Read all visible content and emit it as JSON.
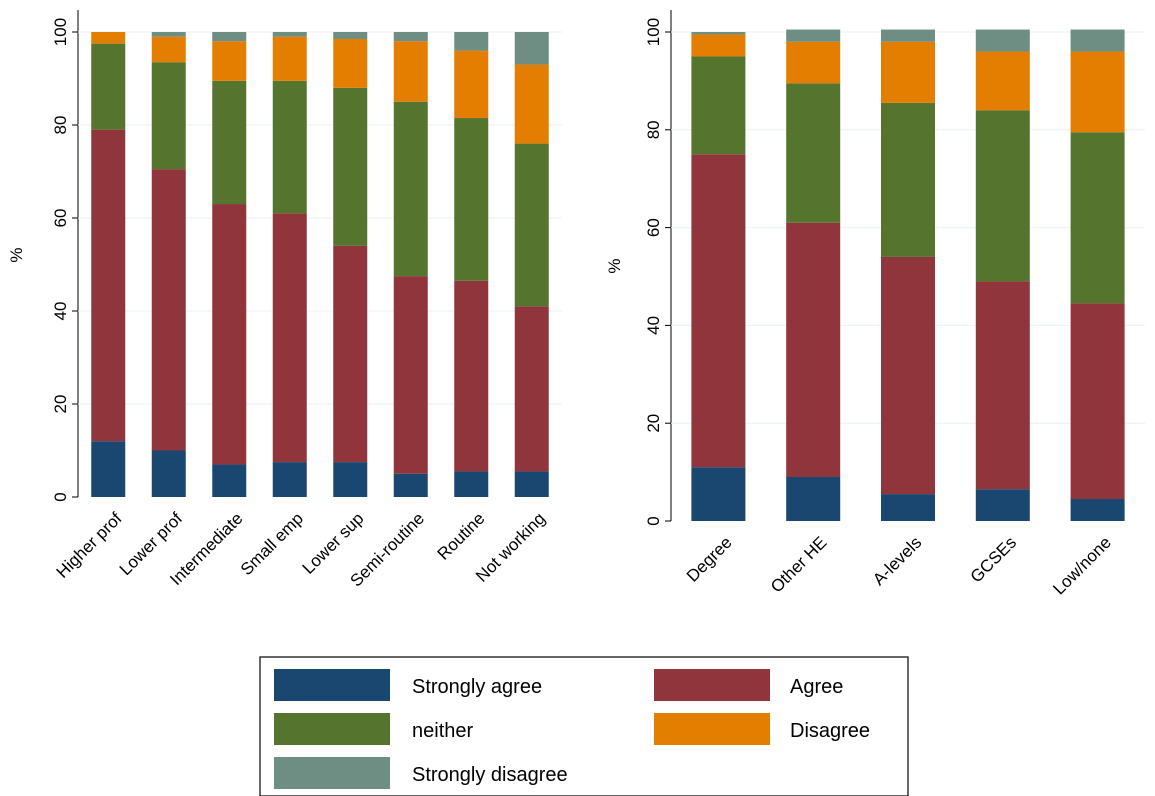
{
  "legend": {
    "position": "bottom",
    "items": [
      {
        "name": "Strongly agree",
        "color": "#1a476f"
      },
      {
        "name": "Agree",
        "color": "#90353b"
      },
      {
        "name": "neither",
        "color": "#55752f"
      },
      {
        "name": "Disagree",
        "color": "#e37e00"
      },
      {
        "name": "Strongly disagree",
        "color": "#6e8e84"
      }
    ]
  },
  "chart_data": [
    {
      "type": "bar",
      "stacked": true,
      "title": "",
      "xlabel": "",
      "ylabel": "%",
      "ylim": [
        0,
        100
      ],
      "yticks": [
        0,
        20,
        40,
        60,
        80,
        100
      ],
      "grid": true,
      "categories": [
        "Higher prof",
        "Lower prof",
        "Intermediate",
        "Small emp",
        "Lower sup",
        "Semi-routine",
        "Routine",
        "Not working"
      ],
      "series": [
        {
          "name": "Strongly agree",
          "color": "#1a476f",
          "values": [
            12,
            10,
            7,
            7.5,
            7.5,
            5,
            5.5,
            5.5
          ]
        },
        {
          "name": "Agree",
          "color": "#90353b",
          "values": [
            67,
            60.5,
            56,
            53.5,
            46.5,
            42.5,
            41,
            35.5
          ]
        },
        {
          "name": "neither",
          "color": "#55752f",
          "values": [
            18.5,
            23,
            26.5,
            28.5,
            34,
            37.5,
            35,
            35
          ]
        },
        {
          "name": "Disagree",
          "color": "#e37e00",
          "values": [
            2.5,
            5.5,
            8.5,
            9.5,
            10.5,
            13,
            14.5,
            17
          ]
        },
        {
          "name": "Strongly disagree",
          "color": "#6e8e84",
          "values": [
            0,
            1,
            2,
            1,
            1.5,
            2,
            4,
            7
          ]
        }
      ]
    },
    {
      "type": "bar",
      "stacked": true,
      "title": "",
      "xlabel": "",
      "ylabel": "%",
      "ylim": [
        0,
        100
      ],
      "yticks": [
        0,
        20,
        40,
        60,
        80,
        100
      ],
      "grid": true,
      "categories": [
        "Degree",
        "Other HE",
        "A-levels",
        "GCSEs",
        "Low/none"
      ],
      "series": [
        {
          "name": "Strongly agree",
          "color": "#1a476f",
          "values": [
            11,
            9,
            5.5,
            6.5,
            4.5
          ]
        },
        {
          "name": "Agree",
          "color": "#90353b",
          "values": [
            64,
            52,
            48.5,
            42.5,
            40
          ]
        },
        {
          "name": "neither",
          "color": "#55752f",
          "values": [
            20,
            28.5,
            31.5,
            35,
            35
          ]
        },
        {
          "name": "Disagree",
          "color": "#e37e00",
          "values": [
            4.5,
            8.5,
            12.5,
            12,
            16.5
          ]
        },
        {
          "name": "Strongly disagree",
          "color": "#6e8e84",
          "values": [
            0.5,
            2.5,
            2.5,
            4.5,
            4.5
          ]
        }
      ]
    }
  ]
}
